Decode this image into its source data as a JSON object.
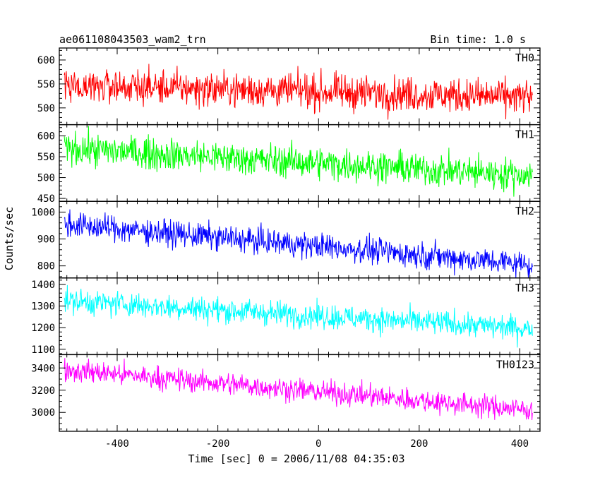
{
  "header": {
    "title": "ae061108043503_wam2_trn",
    "bin_time": "Bin time: 1.0 s"
  },
  "chart_data": {
    "type": "line",
    "xlabel": "Time [sec] 0 = 2006/11/08 04:35:03",
    "ylabel": "Counts/sec",
    "xlim": [
      -515,
      440
    ],
    "x_ticks": [
      -400,
      -200,
      0,
      200,
      400
    ],
    "x_range_data": [
      -505,
      425
    ],
    "bin_seconds": 1.0,
    "panels": [
      {
        "name": "TH0",
        "color": "#ff0000",
        "ylim": [
          465,
          625
        ],
        "yticks": [
          500,
          550,
          600
        ],
        "trend_start": 548,
        "trend_end": 522,
        "noise_amplitude": 30
      },
      {
        "name": "TH1",
        "color": "#00ff00",
        "ylim": [
          443,
          627
        ],
        "yticks": [
          450,
          500,
          550,
          600
        ],
        "trend_start": 570,
        "trend_end": 505,
        "noise_amplitude": 32
      },
      {
        "name": "TH2",
        "color": "#0000ff",
        "ylim": [
          755,
          1040
        ],
        "yticks": [
          800,
          900,
          1000
        ],
        "trend_start": 955,
        "trend_end": 805,
        "noise_amplitude": 40
      },
      {
        "name": "TH3",
        "color": "#00ffff",
        "ylim": [
          1075,
          1430
        ],
        "yticks": [
          1100,
          1200,
          1300,
          1400
        ],
        "trend_start": 1325,
        "trend_end": 1195,
        "noise_amplitude": 48
      },
      {
        "name": "TH0123",
        "color": "#ff00ff",
        "ylim": [
          2830,
          3520
        ],
        "yticks": [
          3000,
          3200,
          3400
        ],
        "trend_start": 3385,
        "trend_end": 3020,
        "noise_amplitude": 85
      }
    ]
  }
}
